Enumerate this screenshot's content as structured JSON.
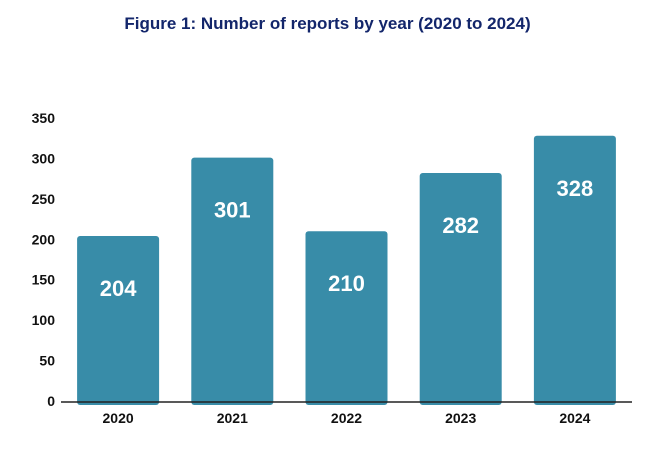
{
  "chart_data": {
    "type": "bar",
    "title": "Figure 1: Number of reports by year (2020 to 2024)",
    "xlabel": "",
    "ylabel": "",
    "categories": [
      "2020",
      "2021",
      "2022",
      "2023",
      "2024"
    ],
    "values": [
      204,
      301,
      210,
      282,
      328
    ],
    "data_labels": [
      "204",
      "301",
      "210",
      "282",
      "328"
    ],
    "ylim": [
      0,
      350
    ],
    "yticks": [
      "0",
      "50",
      "100",
      "150",
      "200",
      "250",
      "300",
      "350"
    ],
    "grid": false,
    "legend": "none",
    "bar_color": "#388ca8",
    "axis_color": "#222222",
    "title_color": "#13266b"
  }
}
